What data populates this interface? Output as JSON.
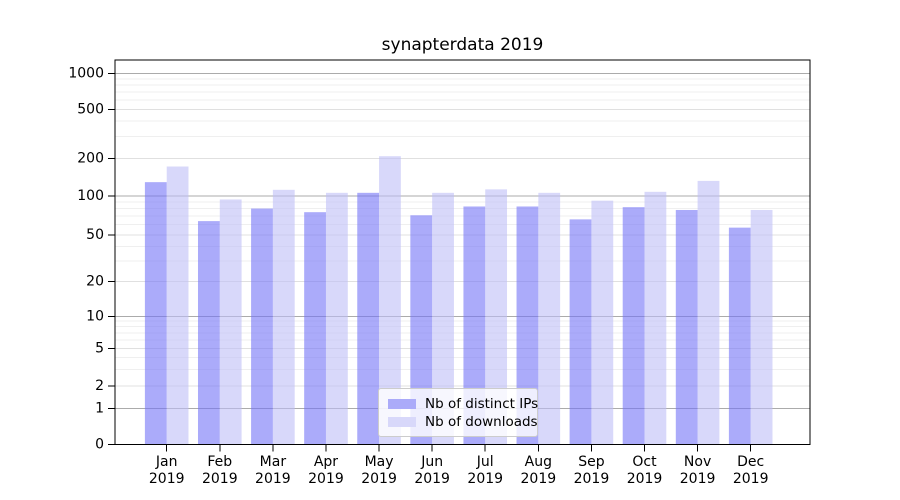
{
  "legend": {
    "items": [
      {
        "label": "Nb of distinct IPs",
        "swatch_color": "#ababf9"
      },
      {
        "label": "Nb of downloads",
        "swatch_color": "#d8d8fa"
      }
    ]
  },
  "chart_data": {
    "type": "bar",
    "title": "synapterdata 2019",
    "categories": [
      "Jan 2019",
      "Feb 2019",
      "Mar 2019",
      "Apr 2019",
      "May 2019",
      "Jun 2019",
      "Jul 2019",
      "Aug 2019",
      "Sep 2019",
      "Oct 2019",
      "Nov 2019",
      "Dec 2019"
    ],
    "series": [
      {
        "name": "Nb of distinct IPs",
        "color": "#7373f7",
        "alpha": 0.6,
        "values": [
          129,
          64,
          80,
          75,
          106,
          71,
          83,
          83,
          66,
          82,
          78,
          57
        ]
      },
      {
        "name": "Nb of downloads",
        "color": "#bebef7",
        "alpha": 0.6,
        "values": [
          172,
          94,
          112,
          106,
          208,
          106,
          113,
          106,
          92,
          108,
          132,
          78
        ]
      }
    ],
    "xlabel": "",
    "ylabel": "",
    "yscale": "log-with-zero",
    "yticks": [
      0,
      1,
      2,
      5,
      10,
      20,
      50,
      100,
      200,
      500,
      1000
    ],
    "ylim": [
      0,
      1280
    ],
    "grid": true,
    "legend_position": "lower center"
  }
}
